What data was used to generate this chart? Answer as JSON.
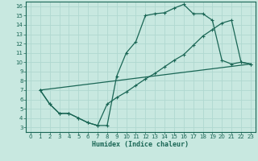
{
  "xlabel": "Humidex (Indice chaleur)",
  "ylabel": "",
  "xlim": [
    -0.5,
    23.5
  ],
  "ylim": [
    2.5,
    16.5
  ],
  "xticks": [
    0,
    1,
    2,
    3,
    4,
    5,
    6,
    7,
    8,
    9,
    10,
    11,
    12,
    13,
    14,
    15,
    16,
    17,
    18,
    19,
    20,
    21,
    22,
    23
  ],
  "yticks": [
    3,
    4,
    5,
    6,
    7,
    8,
    9,
    10,
    11,
    12,
    13,
    14,
    15,
    16
  ],
  "bg_color": "#c8e8e0",
  "line_color": "#1a6655",
  "grid_color": "#b0d8d0",
  "line1_x": [
    1,
    2,
    3,
    4,
    5,
    6,
    7,
    8,
    9,
    10,
    11,
    12,
    13,
    14,
    15,
    16,
    17,
    18,
    19,
    20,
    21,
    22,
    23
  ],
  "line1_y": [
    7.0,
    5.5,
    4.5,
    4.5,
    4.0,
    3.5,
    3.2,
    3.2,
    8.5,
    11.0,
    12.2,
    15.0,
    15.2,
    15.3,
    15.8,
    16.2,
    15.2,
    15.2,
    14.5,
    10.2,
    9.8,
    10.0,
    9.8
  ],
  "line2_x": [
    1,
    2,
    3,
    4,
    5,
    6,
    7,
    8,
    9,
    10,
    11,
    12,
    13,
    14,
    15,
    16,
    17,
    18,
    19,
    20,
    21,
    22,
    23
  ],
  "line2_y": [
    7.0,
    5.5,
    4.5,
    4.5,
    4.0,
    3.5,
    3.2,
    5.5,
    6.2,
    6.8,
    7.5,
    8.2,
    8.8,
    9.5,
    10.2,
    10.8,
    11.8,
    12.8,
    13.5,
    14.2,
    14.5,
    10.0,
    9.8
  ],
  "line3_x": [
    1,
    23
  ],
  "line3_y": [
    7.0,
    9.8
  ],
  "marker": "+",
  "markersize": 3.0,
  "linewidth": 0.9,
  "tick_fontsize": 5.0,
  "xlabel_fontsize": 6.0
}
